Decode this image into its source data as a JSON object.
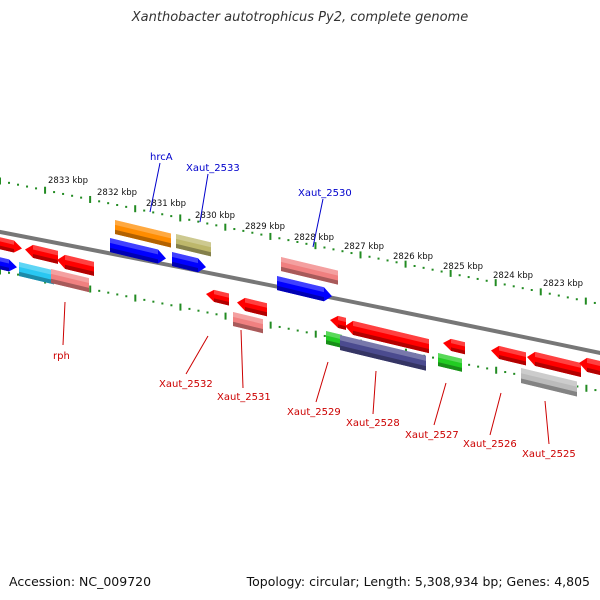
{
  "title": "Xanthobacter autotrophicus Py2, complete genome",
  "footer": {
    "accession": "Accession: NC_009720",
    "info": "Topology: circular; Length: 5,308,934 bp; Genes: 4,805"
  },
  "scale_labels": [
    "2833 kbp",
    "2832 kbp",
    "2831 kbp",
    "2830 kbp",
    "2829 kbp",
    "2828 kbp",
    "2827 kbp",
    "2826 kbp",
    "2825 kbp",
    "2824 kbp",
    "2823 kbp"
  ],
  "gene_labels": {
    "top": [
      "hrcA",
      "Xaut_2533",
      "Xaut_2530"
    ],
    "bottom": [
      "rph",
      "Xaut_2532",
      "Xaut_2531",
      "Xaut_2529",
      "Xaut_2528",
      "Xaut_2527",
      "Xaut_2526",
      "Xaut_2525"
    ]
  },
  "colors": {
    "top_label": "#0000cc",
    "bottom_label": "#cc0000",
    "backbone": "#777777",
    "scale": "#228b22"
  }
}
